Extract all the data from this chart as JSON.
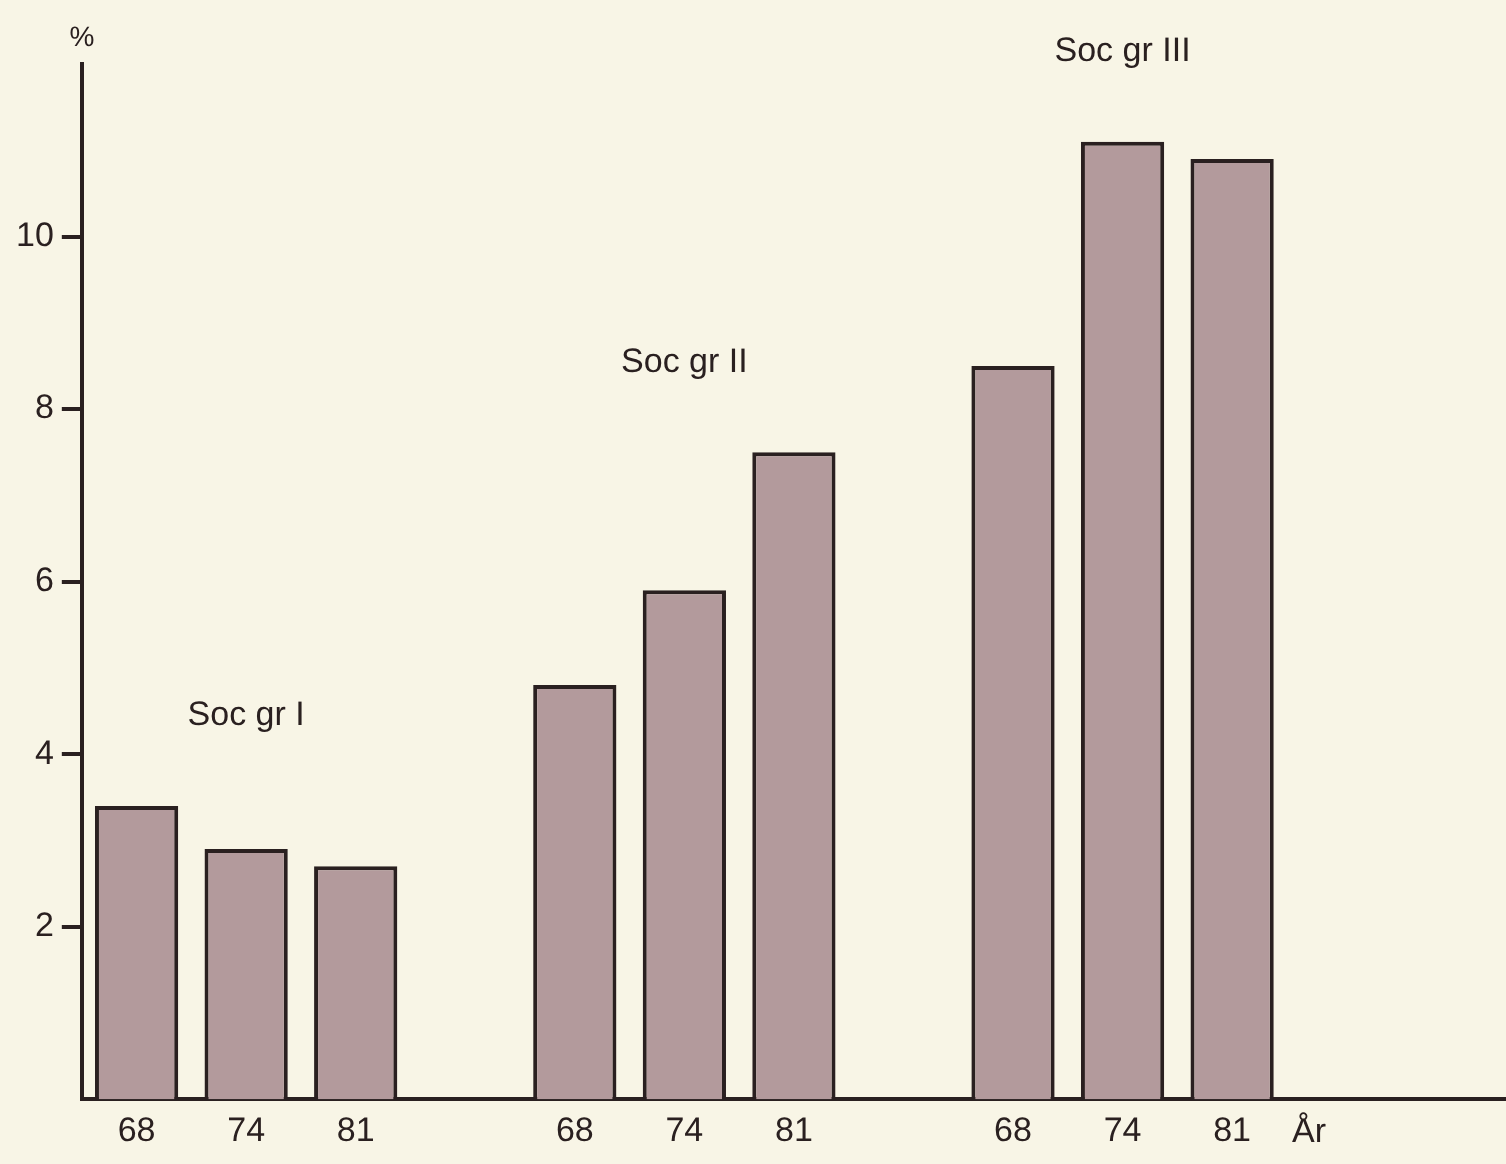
{
  "chart_data": {
    "type": "bar",
    "categories": [
      "68",
      "74",
      "81",
      null,
      "68",
      "74",
      "81",
      null,
      "68",
      "74",
      "81",
      null,
      null
    ],
    "values": [
      3.4,
      2.9,
      2.7,
      null,
      4.8,
      5.9,
      7.5,
      null,
      8.5,
      11.1,
      10.9,
      null,
      null
    ],
    "color": "#b39a9c",
    "ylabel": "%",
    "xlabel": "År",
    "ylim": [
      0,
      12
    ],
    "yticks": [
      2,
      4,
      6,
      8,
      10
    ],
    "annotations": [
      "Soc gr I",
      "Soc gr II",
      "Soc gr III"
    ],
    "grid": false,
    "legend": false
  }
}
